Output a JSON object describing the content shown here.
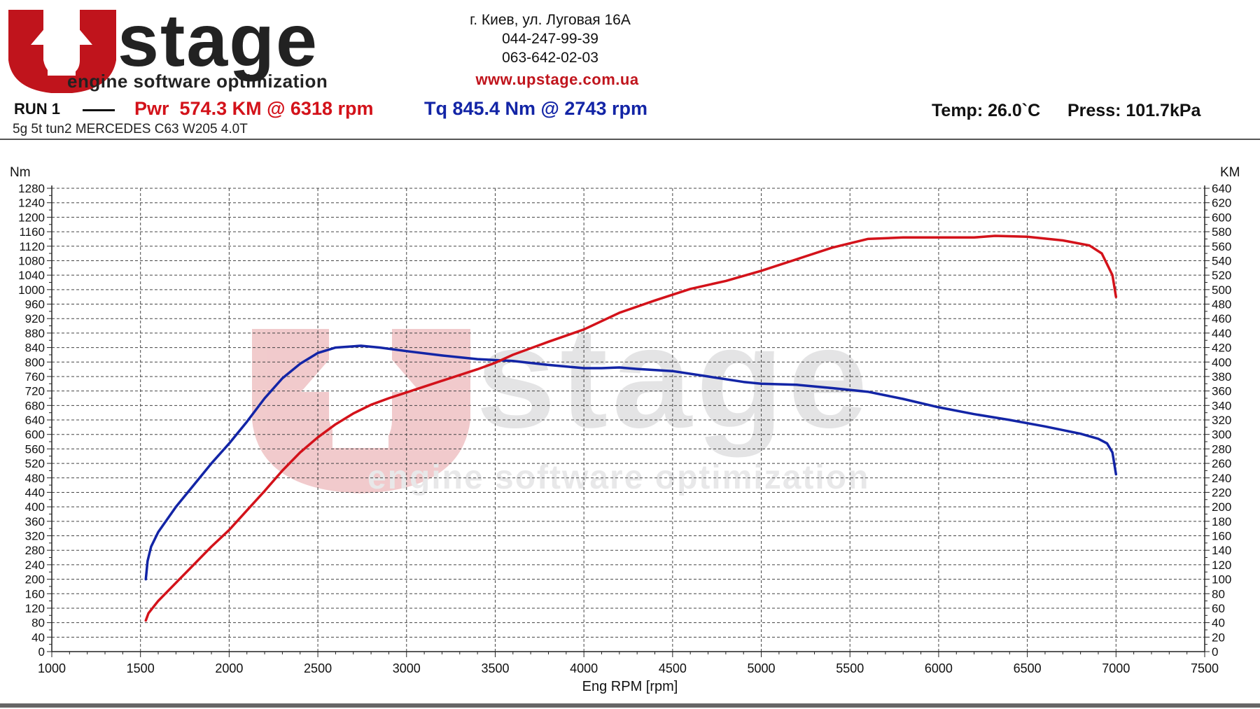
{
  "brand": {
    "logo_text": "stage",
    "logo_tagline": "engine software optimization"
  },
  "contact": {
    "address": "г. Киев, ул. Луговая 16А",
    "phone1": "044-247-99-39",
    "phone2": "063-642-02-03",
    "website": "www.upstage.com.ua"
  },
  "run": {
    "label": "RUN 1",
    "pwr_text": "Pwr  574.3 KM @ 6318 rpm",
    "tq_text": "Tq 845.4 Nm @ 2743 rpm",
    "temp": "Temp: 26.0`C",
    "press": "Press: 101.7kPa",
    "vehicle": "5g 5t tun2 MERCEDES C63 W205 4.0T"
  },
  "colors": {
    "power": "#d3121a",
    "torque": "#1325a6",
    "brand_red": "#c0141c",
    "brand_dark": "#222222"
  },
  "chart_data": {
    "type": "line",
    "xlabel": "Eng RPM [rpm]",
    "ylabel_left": "Nm",
    "ylabel_right": "KM",
    "xlim": [
      1000,
      7500
    ],
    "ylim_left": [
      0,
      1280
    ],
    "ylim_right": [
      0,
      640
    ],
    "x_ticks": [
      1000,
      1500,
      2000,
      2500,
      3000,
      3500,
      4000,
      4500,
      5000,
      5500,
      6000,
      6500,
      7000,
      7500
    ],
    "y_ticks_left": [
      0,
      40,
      80,
      120,
      160,
      200,
      240,
      280,
      320,
      360,
      400,
      440,
      480,
      520,
      560,
      600,
      640,
      680,
      720,
      760,
      800,
      840,
      880,
      920,
      960,
      1000,
      1040,
      1080,
      1120,
      1160,
      1200,
      1240,
      1280
    ],
    "y_ticks_right": [
      0,
      20,
      40,
      60,
      80,
      100,
      120,
      140,
      160,
      180,
      200,
      220,
      240,
      260,
      280,
      300,
      320,
      340,
      360,
      380,
      400,
      420,
      440,
      460,
      480,
      500,
      520,
      540,
      560,
      580,
      600,
      620,
      640
    ],
    "grid": true,
    "series": [
      {
        "key": "torque",
        "axis": "left",
        "color": "#1325a6",
        "points": [
          [
            1530,
            200
          ],
          [
            1540,
            250
          ],
          [
            1560,
            290
          ],
          [
            1600,
            330
          ],
          [
            1700,
            400
          ],
          [
            1800,
            460
          ],
          [
            1900,
            520
          ],
          [
            2000,
            575
          ],
          [
            2100,
            635
          ],
          [
            2200,
            700
          ],
          [
            2300,
            755
          ],
          [
            2400,
            795
          ],
          [
            2500,
            825
          ],
          [
            2600,
            840
          ],
          [
            2743,
            845
          ],
          [
            2850,
            840
          ],
          [
            3000,
            830
          ],
          [
            3200,
            818
          ],
          [
            3400,
            808
          ],
          [
            3600,
            803
          ],
          [
            3800,
            792
          ],
          [
            4000,
            783
          ],
          [
            4100,
            783
          ],
          [
            4200,
            785
          ],
          [
            4300,
            781
          ],
          [
            4500,
            775
          ],
          [
            4700,
            760
          ],
          [
            4900,
            745
          ],
          [
            5000,
            740
          ],
          [
            5200,
            737
          ],
          [
            5400,
            728
          ],
          [
            5600,
            718
          ],
          [
            5800,
            698
          ],
          [
            6000,
            675
          ],
          [
            6200,
            656
          ],
          [
            6400,
            640
          ],
          [
            6600,
            622
          ],
          [
            6800,
            602
          ],
          [
            6900,
            588
          ],
          [
            6950,
            575
          ],
          [
            6980,
            550
          ],
          [
            7000,
            490
          ]
        ]
      },
      {
        "key": "power",
        "axis": "right",
        "color": "#d3121a",
        "points": [
          [
            1530,
            43
          ],
          [
            1545,
            53
          ],
          [
            1600,
            70
          ],
          [
            1700,
            95
          ],
          [
            1800,
            120
          ],
          [
            1900,
            145
          ],
          [
            2000,
            168
          ],
          [
            2100,
            195
          ],
          [
            2200,
            222
          ],
          [
            2300,
            250
          ],
          [
            2400,
            275
          ],
          [
            2500,
            296
          ],
          [
            2600,
            314
          ],
          [
            2700,
            329
          ],
          [
            2800,
            341
          ],
          [
            2900,
            350
          ],
          [
            3000,
            358
          ],
          [
            3200,
            374
          ],
          [
            3400,
            390
          ],
          [
            3500,
            399
          ],
          [
            3600,
            410
          ],
          [
            3800,
            428
          ],
          [
            4000,
            445
          ],
          [
            4200,
            468
          ],
          [
            4400,
            485
          ],
          [
            4600,
            501
          ],
          [
            4800,
            512
          ],
          [
            5000,
            526
          ],
          [
            5200,
            542
          ],
          [
            5400,
            558
          ],
          [
            5600,
            570
          ],
          [
            5800,
            572
          ],
          [
            6000,
            572
          ],
          [
            6200,
            572
          ],
          [
            6318,
            574.3
          ],
          [
            6500,
            573
          ],
          [
            6700,
            568
          ],
          [
            6850,
            561
          ],
          [
            6920,
            550
          ],
          [
            6980,
            520
          ],
          [
            7000,
            490
          ]
        ]
      }
    ]
  }
}
